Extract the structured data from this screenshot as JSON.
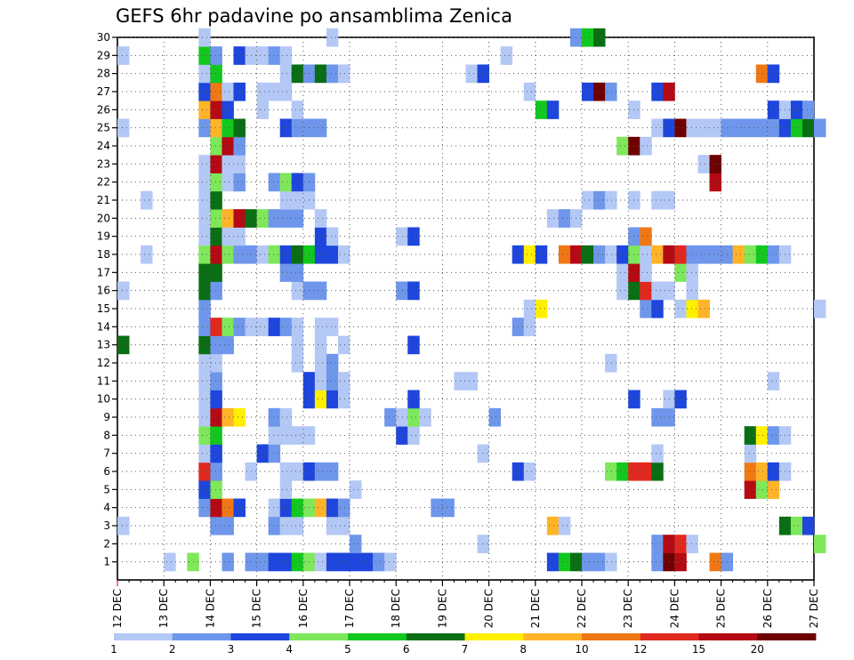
{
  "chart_data": {
    "type": "heatmap",
    "title": "GEFS 6hr padavine po ansamblima Zenica",
    "xlabel": "",
    "ylabel": "",
    "x_ticks": [
      "12 DEC",
      "13 DEC",
      "14 DEC",
      "15 DEC",
      "16 DEC",
      "17 DEC",
      "18 DEC",
      "19 DEC",
      "20 DEC",
      "21 DEC",
      "22 DEC",
      "23 DEC",
      "24 DEC",
      "25 DEC",
      "26 DEC",
      "27 DEC"
    ],
    "y_ticks": [
      1,
      2,
      3,
      4,
      5,
      6,
      7,
      8,
      9,
      10,
      11,
      12,
      13,
      14,
      15,
      16,
      17,
      18,
      19,
      20,
      21,
      22,
      23,
      24,
      25,
      26,
      27,
      28,
      29,
      30
    ],
    "ylim": [
      0,
      30
    ],
    "grid": true,
    "colorbar": {
      "labels": [
        "1",
        "2",
        "3",
        "4",
        "5",
        "6",
        "7",
        "8",
        "10",
        "12",
        "15",
        "20"
      ],
      "colors": [
        "#b4c8f5",
        "#6e96eb",
        "#1e46dc",
        "#7ee85a",
        "#12c81e",
        "#0a6e14",
        "#fff000",
        "#ffb428",
        "#f07814",
        "#e1281e",
        "#b40a14",
        "#6e0000"
      ]
    },
    "cells": [
      [
        1,
        4,
        1
      ],
      [
        1,
        6,
        4
      ],
      [
        1,
        9,
        2
      ],
      [
        1,
        11,
        2
      ],
      [
        1,
        12,
        2
      ],
      [
        1,
        13,
        3
      ],
      [
        1,
        14,
        3
      ],
      [
        1,
        15,
        5
      ],
      [
        1,
        16,
        4
      ],
      [
        1,
        17,
        1
      ],
      [
        1,
        18,
        3
      ],
      [
        1,
        19,
        3
      ],
      [
        1,
        20,
        3
      ],
      [
        1,
        21,
        3
      ],
      [
        1,
        22,
        2
      ],
      [
        1,
        23,
        1
      ],
      [
        1,
        37,
        3
      ],
      [
        1,
        38,
        5
      ],
      [
        1,
        39,
        6
      ],
      [
        1,
        40,
        2
      ],
      [
        1,
        41,
        2
      ],
      [
        1,
        42,
        1
      ],
      [
        1,
        46,
        2
      ],
      [
        1,
        47,
        12
      ],
      [
        1,
        48,
        11
      ],
      [
        1,
        51,
        9
      ],
      [
        1,
        52,
        2
      ],
      [
        2,
        20,
        2
      ],
      [
        2,
        31,
        1
      ],
      [
        2,
        46,
        2
      ],
      [
        2,
        47,
        11
      ],
      [
        2,
        48,
        10
      ],
      [
        2,
        49,
        1
      ],
      [
        2,
        60,
        4
      ],
      [
        3,
        0,
        1
      ],
      [
        3,
        8,
        2
      ],
      [
        3,
        9,
        2
      ],
      [
        3,
        13,
        2
      ],
      [
        3,
        14,
        1
      ],
      [
        3,
        15,
        1
      ],
      [
        3,
        18,
        1
      ],
      [
        3,
        19,
        1
      ],
      [
        3,
        37,
        8
      ],
      [
        3,
        38,
        1
      ],
      [
        3,
        57,
        6
      ],
      [
        3,
        58,
        4
      ],
      [
        3,
        59,
        3
      ],
      [
        4,
        7,
        2
      ],
      [
        4,
        8,
        11
      ],
      [
        4,
        9,
        9
      ],
      [
        4,
        10,
        3
      ],
      [
        4,
        13,
        1
      ],
      [
        4,
        14,
        3
      ],
      [
        4,
        15,
        5
      ],
      [
        4,
        16,
        4
      ],
      [
        4,
        17,
        8
      ],
      [
        4,
        18,
        3
      ],
      [
        4,
        19,
        2
      ],
      [
        4,
        27,
        2
      ],
      [
        4,
        28,
        2
      ],
      [
        5,
        7,
        3
      ],
      [
        5,
        8,
        4
      ],
      [
        5,
        14,
        1
      ],
      [
        5,
        20,
        1
      ],
      [
        5,
        54,
        11
      ],
      [
        5,
        55,
        4
      ],
      [
        5,
        56,
        8
      ],
      [
        6,
        7,
        10
      ],
      [
        6,
        8,
        2
      ],
      [
        6,
        11,
        1
      ],
      [
        6,
        14,
        1
      ],
      [
        6,
        15,
        1
      ],
      [
        6,
        16,
        3
      ],
      [
        6,
        17,
        2
      ],
      [
        6,
        18,
        2
      ],
      [
        6,
        34,
        3
      ],
      [
        6,
        35,
        1
      ],
      [
        6,
        42,
        4
      ],
      [
        6,
        43,
        5
      ],
      [
        6,
        44,
        10
      ],
      [
        6,
        45,
        10
      ],
      [
        6,
        46,
        6
      ],
      [
        6,
        54,
        9
      ],
      [
        6,
        55,
        8
      ],
      [
        6,
        56,
        3
      ],
      [
        6,
        57,
        1
      ],
      [
        7,
        7,
        1
      ],
      [
        7,
        8,
        3
      ],
      [
        7,
        12,
        3
      ],
      [
        7,
        13,
        2
      ],
      [
        7,
        31,
        1
      ],
      [
        7,
        46,
        1
      ],
      [
        7,
        54,
        1
      ],
      [
        8,
        7,
        4
      ],
      [
        8,
        8,
        5
      ],
      [
        8,
        13,
        1
      ],
      [
        8,
        14,
        1
      ],
      [
        8,
        15,
        1
      ],
      [
        8,
        16,
        1
      ],
      [
        8,
        24,
        3
      ],
      [
        8,
        25,
        1
      ],
      [
        8,
        54,
        6
      ],
      [
        8,
        55,
        7
      ],
      [
        8,
        56,
        2
      ],
      [
        8,
        57,
        1
      ],
      [
        9,
        7,
        1
      ],
      [
        9,
        8,
        11
      ],
      [
        9,
        9,
        8
      ],
      [
        9,
        10,
        7
      ],
      [
        9,
        13,
        2
      ],
      [
        9,
        14,
        1
      ],
      [
        9,
        23,
        2
      ],
      [
        9,
        24,
        1
      ],
      [
        9,
        25,
        4
      ],
      [
        9,
        26,
        1
      ],
      [
        9,
        32,
        2
      ],
      [
        9,
        46,
        2
      ],
      [
        9,
        47,
        2
      ],
      [
        10,
        7,
        1
      ],
      [
        10,
        8,
        3
      ],
      [
        10,
        16,
        3
      ],
      [
        10,
        17,
        7
      ],
      [
        10,
        18,
        3
      ],
      [
        10,
        19,
        1
      ],
      [
        10,
        25,
        3
      ],
      [
        10,
        44,
        3
      ],
      [
        10,
        47,
        1
      ],
      [
        10,
        48,
        3
      ],
      [
        11,
        7,
        1
      ],
      [
        11,
        8,
        2
      ],
      [
        11,
        16,
        3
      ],
      [
        11,
        17,
        1
      ],
      [
        11,
        18,
        2
      ],
      [
        11,
        19,
        1
      ],
      [
        11,
        29,
        1
      ],
      [
        11,
        30,
        1
      ],
      [
        11,
        56,
        1
      ],
      [
        12,
        7,
        1
      ],
      [
        12,
        8,
        1
      ],
      [
        12,
        15,
        1
      ],
      [
        12,
        17,
        1
      ],
      [
        12,
        18,
        2
      ],
      [
        12,
        42,
        1
      ],
      [
        13,
        0,
        6
      ],
      [
        13,
        7,
        6
      ],
      [
        13,
        8,
        2
      ],
      [
        13,
        9,
        2
      ],
      [
        13,
        15,
        1
      ],
      [
        13,
        17,
        1
      ],
      [
        13,
        19,
        1
      ],
      [
        13,
        25,
        3
      ],
      [
        14,
        7,
        2
      ],
      [
        14,
        8,
        10
      ],
      [
        14,
        9,
        4
      ],
      [
        14,
        10,
        2
      ],
      [
        14,
        11,
        1
      ],
      [
        14,
        12,
        1
      ],
      [
        14,
        13,
        3
      ],
      [
        14,
        14,
        2
      ],
      [
        14,
        15,
        1
      ],
      [
        14,
        17,
        1
      ],
      [
        14,
        18,
        1
      ],
      [
        14,
        34,
        2
      ],
      [
        14,
        35,
        1
      ],
      [
        15,
        7,
        2
      ],
      [
        15,
        35,
        1
      ],
      [
        15,
        36,
        7
      ],
      [
        15,
        45,
        2
      ],
      [
        15,
        46,
        3
      ],
      [
        15,
        48,
        1
      ],
      [
        15,
        49,
        7
      ],
      [
        15,
        50,
        8
      ],
      [
        15,
        60,
        1
      ],
      [
        16,
        0,
        1
      ],
      [
        16,
        7,
        6
      ],
      [
        16,
        8,
        2
      ],
      [
        16,
        15,
        1
      ],
      [
        16,
        16,
        2
      ],
      [
        16,
        17,
        2
      ],
      [
        16,
        24,
        2
      ],
      [
        16,
        25,
        3
      ],
      [
        16,
        43,
        1
      ],
      [
        16,
        44,
        6
      ],
      [
        16,
        45,
        10
      ],
      [
        16,
        46,
        1
      ],
      [
        16,
        47,
        1
      ],
      [
        16,
        49,
        1
      ],
      [
        17,
        7,
        6
      ],
      [
        17,
        8,
        6
      ],
      [
        17,
        14,
        2
      ],
      [
        17,
        15,
        2
      ],
      [
        17,
        43,
        1
      ],
      [
        17,
        44,
        11
      ],
      [
        17,
        45,
        1
      ],
      [
        17,
        48,
        4
      ],
      [
        17,
        49,
        1
      ],
      [
        18,
        2,
        1
      ],
      [
        18,
        7,
        4
      ],
      [
        18,
        8,
        11
      ],
      [
        18,
        9,
        4
      ],
      [
        18,
        10,
        2
      ],
      [
        18,
        11,
        2
      ],
      [
        18,
        12,
        1
      ],
      [
        18,
        13,
        4
      ],
      [
        18,
        14,
        3
      ],
      [
        18,
        15,
        6
      ],
      [
        18,
        16,
        5
      ],
      [
        18,
        17,
        3
      ],
      [
        18,
        18,
        3
      ],
      [
        18,
        19,
        1
      ],
      [
        18,
        34,
        3
      ],
      [
        18,
        35,
        7
      ],
      [
        18,
        36,
        3
      ],
      [
        18,
        38,
        9
      ],
      [
        18,
        39,
        11
      ],
      [
        18,
        40,
        6
      ],
      [
        18,
        41,
        2
      ],
      [
        18,
        42,
        1
      ],
      [
        18,
        43,
        3
      ],
      [
        18,
        44,
        4
      ],
      [
        18,
        45,
        1
      ],
      [
        18,
        46,
        8
      ],
      [
        18,
        47,
        11
      ],
      [
        18,
        48,
        10
      ],
      [
        18,
        49,
        2
      ],
      [
        18,
        50,
        2
      ],
      [
        18,
        51,
        2
      ],
      [
        18,
        52,
        2
      ],
      [
        18,
        53,
        8
      ],
      [
        18,
        54,
        4
      ],
      [
        18,
        55,
        5
      ],
      [
        18,
        56,
        2
      ],
      [
        18,
        57,
        1
      ],
      [
        19,
        7,
        1
      ],
      [
        19,
        8,
        6
      ],
      [
        19,
        9,
        1
      ],
      [
        19,
        10,
        1
      ],
      [
        19,
        17,
        3
      ],
      [
        19,
        18,
        1
      ],
      [
        19,
        24,
        1
      ],
      [
        19,
        25,
        3
      ],
      [
        19,
        44,
        2
      ],
      [
        19,
        45,
        9
      ],
      [
        20,
        7,
        1
      ],
      [
        20,
        8,
        4
      ],
      [
        20,
        9,
        8
      ],
      [
        20,
        10,
        11
      ],
      [
        20,
        11,
        6
      ],
      [
        20,
        12,
        4
      ],
      [
        20,
        13,
        2
      ],
      [
        20,
        14,
        2
      ],
      [
        20,
        15,
        2
      ],
      [
        20,
        17,
        1
      ],
      [
        20,
        37,
        1
      ],
      [
        20,
        38,
        2
      ],
      [
        20,
        39,
        1
      ],
      [
        21,
        2,
        1
      ],
      [
        21,
        7,
        1
      ],
      [
        21,
        8,
        6
      ],
      [
        21,
        14,
        1
      ],
      [
        21,
        15,
        1
      ],
      [
        21,
        16,
        1
      ],
      [
        21,
        40,
        1
      ],
      [
        21,
        41,
        2
      ],
      [
        21,
        42,
        1
      ],
      [
        21,
        44,
        1
      ],
      [
        21,
        46,
        1
      ],
      [
        21,
        47,
        1
      ],
      [
        22,
        7,
        1
      ],
      [
        22,
        8,
        4
      ],
      [
        22,
        9,
        1
      ],
      [
        22,
        10,
        2
      ],
      [
        22,
        13,
        2
      ],
      [
        22,
        14,
        4
      ],
      [
        22,
        15,
        3
      ],
      [
        22,
        16,
        2
      ],
      [
        22,
        51,
        11
      ],
      [
        23,
        7,
        1
      ],
      [
        23,
        8,
        11
      ],
      [
        23,
        9,
        1
      ],
      [
        23,
        10,
        1
      ],
      [
        23,
        50,
        1
      ],
      [
        23,
        51,
        12
      ],
      [
        24,
        8,
        4
      ],
      [
        24,
        9,
        11
      ],
      [
        24,
        10,
        2
      ],
      [
        24,
        43,
        4
      ],
      [
        24,
        44,
        12
      ],
      [
        24,
        45,
        1
      ],
      [
        25,
        0,
        1
      ],
      [
        25,
        7,
        2
      ],
      [
        25,
        8,
        8
      ],
      [
        25,
        9,
        5
      ],
      [
        25,
        10,
        6
      ],
      [
        25,
        14,
        3
      ],
      [
        25,
        15,
        2
      ],
      [
        25,
        16,
        2
      ],
      [
        25,
        17,
        2
      ],
      [
        25,
        46,
        1
      ],
      [
        25,
        47,
        3
      ],
      [
        25,
        48,
        12
      ],
      [
        25,
        49,
        1
      ],
      [
        25,
        50,
        1
      ],
      [
        25,
        51,
        1
      ],
      [
        25,
        52,
        2
      ],
      [
        25,
        53,
        2
      ],
      [
        25,
        54,
        2
      ],
      [
        25,
        55,
        2
      ],
      [
        25,
        56,
        2
      ],
      [
        25,
        57,
        3
      ],
      [
        25,
        58,
        5
      ],
      [
        25,
        59,
        6
      ],
      [
        25,
        60,
        2
      ],
      [
        26,
        7,
        8
      ],
      [
        26,
        8,
        11
      ],
      [
        26,
        9,
        3
      ],
      [
        26,
        12,
        1
      ],
      [
        26,
        15,
        1
      ],
      [
        26,
        36,
        5
      ],
      [
        26,
        37,
        3
      ],
      [
        26,
        44,
        1
      ],
      [
        26,
        56,
        3
      ],
      [
        26,
        57,
        1
      ],
      [
        26,
        58,
        3
      ],
      [
        26,
        59,
        2
      ],
      [
        27,
        7,
        3
      ],
      [
        27,
        8,
        9
      ],
      [
        27,
        9,
        1
      ],
      [
        27,
        10,
        3
      ],
      [
        27,
        12,
        1
      ],
      [
        27,
        13,
        1
      ],
      [
        27,
        14,
        1
      ],
      [
        27,
        35,
        1
      ],
      [
        27,
        40,
        3
      ],
      [
        27,
        41,
        12
      ],
      [
        27,
        42,
        2
      ],
      [
        27,
        46,
        3
      ],
      [
        27,
        47,
        11
      ],
      [
        28,
        7,
        1
      ],
      [
        28,
        8,
        5
      ],
      [
        28,
        14,
        1
      ],
      [
        28,
        15,
        6
      ],
      [
        28,
        16,
        2
      ],
      [
        28,
        17,
        6
      ],
      [
        28,
        18,
        2
      ],
      [
        28,
        19,
        1
      ],
      [
        28,
        30,
        1
      ],
      [
        28,
        31,
        3
      ],
      [
        28,
        55,
        9
      ],
      [
        28,
        56,
        3
      ],
      [
        29,
        0,
        1
      ],
      [
        29,
        7,
        5
      ],
      [
        29,
        8,
        2
      ],
      [
        29,
        10,
        3
      ],
      [
        29,
        11,
        1
      ],
      [
        29,
        12,
        1
      ],
      [
        29,
        13,
        2
      ],
      [
        29,
        14,
        1
      ],
      [
        29,
        33,
        1
      ],
      [
        30,
        7,
        1
      ],
      [
        30,
        18,
        1
      ],
      [
        30,
        39,
        2
      ],
      [
        30,
        40,
        5
      ],
      [
        30,
        41,
        6
      ]
    ]
  }
}
